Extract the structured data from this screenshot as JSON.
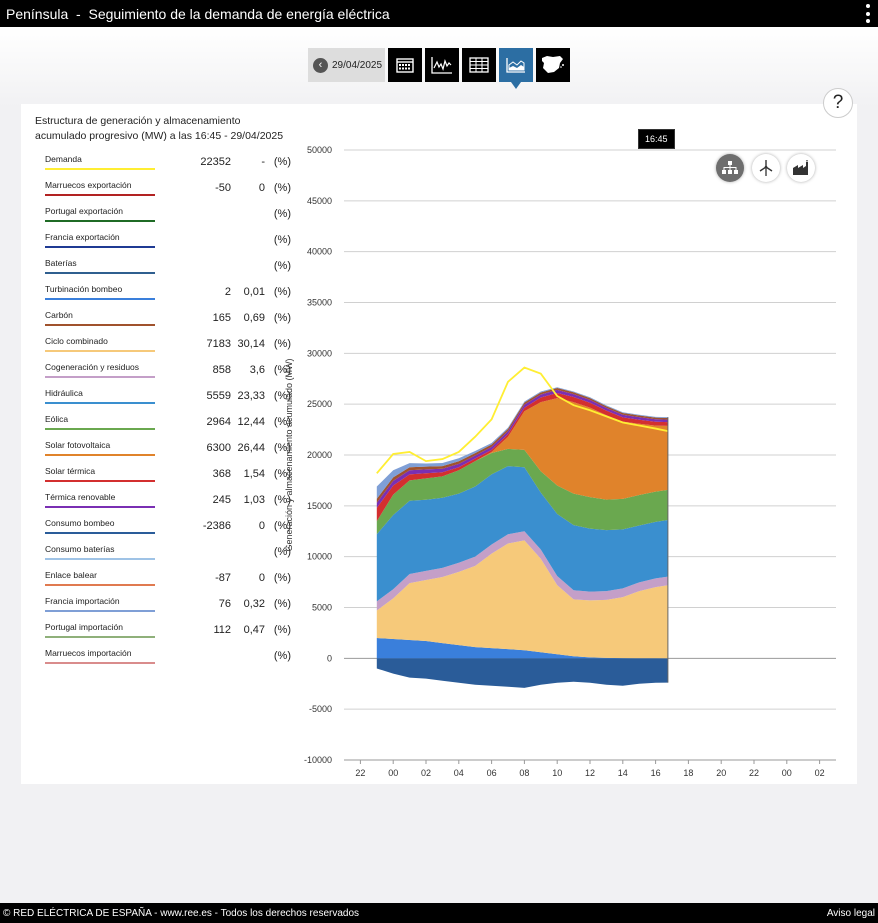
{
  "app": {
    "title": "Península  -  Seguimiento de la demanda de energía eléctrica"
  },
  "toolbar": {
    "date": "29/04/2025",
    "buttons": [
      {
        "name": "calendar-icon"
      },
      {
        "name": "line-chart-icon"
      },
      {
        "name": "table-icon"
      },
      {
        "name": "area-chart-icon",
        "active": true
      },
      {
        "name": "spain-map-icon"
      }
    ]
  },
  "help_label": "?",
  "legend": {
    "title_line1": "Estructura de generación y almacenamiento",
    "title_line2": "acumulado progresivo (MW) a las 16:45 - 29/04/2025",
    "items": [
      {
        "label": "Demanda",
        "color": "#ffee33",
        "value": "22352",
        "pct": "-",
        "unit": "(%)"
      },
      {
        "label": "Marruecos exportación",
        "color": "#b22222",
        "value": "-50",
        "pct": "0",
        "unit": "(%)"
      },
      {
        "label": "Portugal exportación",
        "color": "#1f6b25",
        "value": "",
        "pct": "",
        "unit": "(%)"
      },
      {
        "label": "Francia exportación",
        "color": "#1f3a93",
        "value": "",
        "pct": "",
        "unit": "(%)"
      },
      {
        "label": "Baterías",
        "color": "#2f5f8f",
        "value": "",
        "pct": "",
        "unit": "(%)"
      },
      {
        "label": "Turbinación bombeo",
        "color": "#3a7fdb",
        "value": "2",
        "pct": "0,01",
        "unit": "(%)"
      },
      {
        "label": "Carbón",
        "color": "#a0522d",
        "value": "165",
        "pct": "0,69",
        "unit": "(%)"
      },
      {
        "label": "Ciclo combinado",
        "color": "#f6c97a",
        "value": "7183",
        "pct": "30,14",
        "unit": "(%)"
      },
      {
        "label": "Cogeneración y residuos",
        "color": "#c49fc8",
        "value": "858",
        "pct": "3,6",
        "unit": "(%)"
      },
      {
        "label": "Hidráulica",
        "color": "#3a8fcf",
        "value": "5559",
        "pct": "23,33",
        "unit": "(%)"
      },
      {
        "label": "Eólica",
        "color": "#6aa84f",
        "value": "2964",
        "pct": "12,44",
        "unit": "(%)"
      },
      {
        "label": "Solar fotovoltaica",
        "color": "#e0832b",
        "value": "6300",
        "pct": "26,44",
        "unit": "(%)"
      },
      {
        "label": "Solar térmica",
        "color": "#d32f2f",
        "value": "368",
        "pct": "1,54",
        "unit": "(%)"
      },
      {
        "label": "Térmica renovable",
        "color": "#7a2fb3",
        "value": "245",
        "pct": "1,03",
        "unit": "(%)"
      },
      {
        "label": "Consumo bombeo",
        "color": "#2a5c99",
        "value": "-2386",
        "pct": "0",
        "unit": "(%)"
      },
      {
        "label": "Consumo baterías",
        "color": "#9fc3e6",
        "value": "",
        "pct": "",
        "unit": "(%)"
      },
      {
        "label": "Enlace balear",
        "color": "#e07a50",
        "value": "-87",
        "pct": "0",
        "unit": "(%)"
      },
      {
        "label": "Francia importación",
        "color": "#7f9fd6",
        "value": "76",
        "pct": "0,32",
        "unit": "(%)"
      },
      {
        "label": "Portugal importación",
        "color": "#8fb07a",
        "value": "112",
        "pct": "0,47",
        "unit": "(%)"
      },
      {
        "label": "Marruecos importación",
        "color": "#d98c8c",
        "value": "",
        "pct": "",
        "unit": "(%)"
      }
    ]
  },
  "tooltip": "16:45",
  "view_icons": [
    "hierarchy-icon",
    "wind-turbine-icon",
    "factory-icon"
  ],
  "chart_data": {
    "type": "area",
    "ylabel": "Generación y almacenamiento acumulado (MW)",
    "ylim": [
      -10000,
      50000
    ],
    "yticks": [
      50000,
      45000,
      40000,
      35000,
      30000,
      25000,
      20000,
      15000,
      10000,
      5000,
      0,
      -5000,
      -10000
    ],
    "xtick_labels": [
      "22",
      "00",
      "02",
      "04",
      "06",
      "08",
      "10",
      "12",
      "14",
      "16",
      "18",
      "20",
      "22",
      "00",
      "02"
    ],
    "x_hours": [
      -2,
      0,
      2,
      4,
      6,
      8,
      10,
      12,
      14,
      16,
      18,
      20,
      22,
      24,
      26
    ],
    "x_range": [
      -3,
      27
    ],
    "data_end_hour": 16.75,
    "grid": true,
    "x": [
      -1,
      0,
      1,
      2,
      3,
      4,
      5,
      6,
      7,
      8,
      9,
      10,
      11,
      12,
      13,
      14,
      15,
      16,
      16.75
    ],
    "series": [
      {
        "name": "Turbinación bombeo",
        "color": "#3a7fdb",
        "values": [
          2000,
          1900,
          1800,
          1700,
          1500,
          1300,
          1100,
          1000,
          900,
          800,
          600,
          400,
          200,
          100,
          50,
          20,
          10,
          5,
          2
        ]
      },
      {
        "name": "Ciclo combinado",
        "color": "#f6c97a",
        "values": [
          2700,
          4000,
          5600,
          6000,
          6500,
          7200,
          8000,
          9300,
          10400,
          10800,
          9200,
          6800,
          5600,
          5600,
          5700,
          6000,
          6600,
          7000,
          7183
        ]
      },
      {
        "name": "Cogeneración y residuos",
        "color": "#c49fc8",
        "values": [
          900,
          900,
          900,
          900,
          900,
          900,
          900,
          900,
          900,
          900,
          900,
          900,
          900,
          860,
          860,
          860,
          860,
          860,
          858
        ]
      },
      {
        "name": "Hidráulica",
        "color": "#3a8fcf",
        "values": [
          6600,
          7300,
          7200,
          7000,
          6900,
          6800,
          6900,
          6900,
          6700,
          6300,
          5600,
          6100,
          6400,
          6200,
          6000,
          5800,
          5600,
          5560,
          5559
        ]
      },
      {
        "name": "Eólica",
        "color": "#6aa84f",
        "values": [
          1300,
          2000,
          2000,
          2100,
          2100,
          2300,
          2500,
          2100,
          1700,
          1700,
          2100,
          2800,
          3100,
          3100,
          3000,
          3000,
          3000,
          2970,
          2964
        ]
      },
      {
        "name": "Solar fotovoltaica",
        "color": "#e0832b",
        "values": [
          0,
          0,
          0,
          0,
          0,
          0,
          0,
          100,
          1200,
          3800,
          6800,
          8600,
          9000,
          8800,
          8300,
          7600,
          7000,
          6500,
          6300
        ]
      },
      {
        "name": "Solar térmica",
        "color": "#d32f2f",
        "values": [
          1300,
          900,
          600,
          500,
          400,
          300,
          250,
          200,
          250,
          350,
          450,
          500,
          500,
          480,
          450,
          420,
          400,
          370,
          368
        ]
      },
      {
        "name": "Térmica renovable",
        "color": "#7a2fb3",
        "values": [
          500,
          450,
          400,
          380,
          350,
          330,
          300,
          300,
          300,
          300,
          300,
          300,
          290,
          280,
          270,
          260,
          250,
          250,
          245
        ]
      },
      {
        "name": "Carbón",
        "color": "#a0522d",
        "values": [
          400,
          350,
          300,
          280,
          260,
          250,
          240,
          230,
          220,
          210,
          200,
          190,
          180,
          175,
          170,
          168,
          166,
          165,
          165
        ]
      },
      {
        "name": "Francia importación",
        "color": "#7f9fd6",
        "values": [
          1200,
          700,
          400,
          300,
          300,
          300,
          200,
          150,
          120,
          100,
          90,
          80,
          80,
          80,
          80,
          78,
          77,
          76,
          76
        ]
      },
      {
        "name": "Consumo bombeo",
        "color": "#2a5c99",
        "values": [
          -1000,
          -1500,
          -1900,
          -2000,
          -2200,
          -2400,
          -2600,
          -2700,
          -2800,
          -2900,
          -2600,
          -2400,
          -2300,
          -2400,
          -2600,
          -2700,
          -2500,
          -2400,
          -2386
        ]
      },
      {
        "name": "Demanda",
        "color": "#ffee33",
        "line": true,
        "values": [
          18200,
          20100,
          20300,
          19400,
          19600,
          20300,
          21800,
          23500,
          27200,
          28600,
          28000,
          25800,
          24900,
          24400,
          23800,
          23200,
          22900,
          22600,
          22352
        ]
      }
    ]
  }
}
